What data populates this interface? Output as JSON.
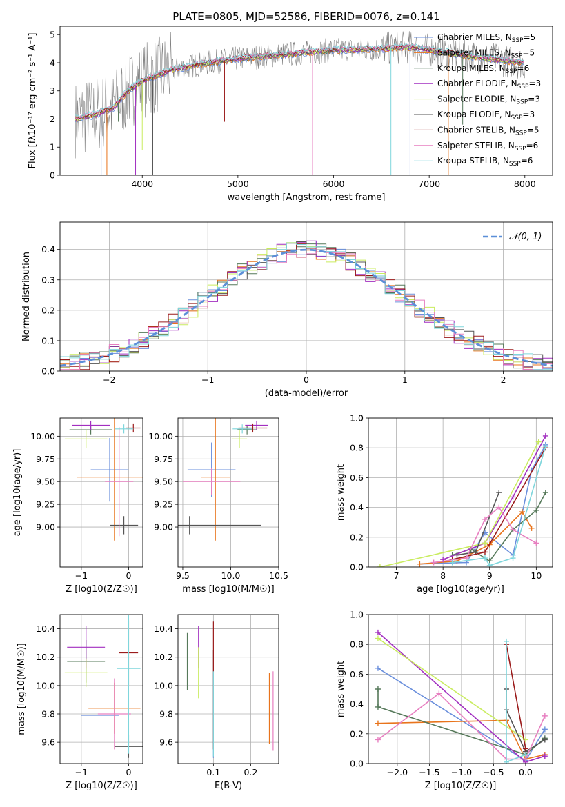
{
  "figure": {
    "title": "PLATE=0805, MJD=52586, FIBERID=0076, z=0.141"
  },
  "colors": {
    "c1": "#6a8fdc",
    "c2": "#e8741c",
    "c3": "#56795a",
    "c4": "#a22fc0",
    "c5": "#c9ec5e",
    "c6": "#555555",
    "c7": "#9b1c1c",
    "c8": "#e77fc0",
    "c9": "#7fd6dc",
    "obs": "#808080",
    "gauss": "#5b8fd8"
  },
  "chart_data": [
    {
      "id": "spectrum",
      "type": "line",
      "title": "PLATE=0805, MJD=52586, FIBERID=0076, z=0.141",
      "xlabel": "wavelength [Angstrom, rest frame]",
      "ylabel": "Flux [fλ10⁻¹⁷ erg cm⁻² s⁻¹ A⁻¹]",
      "xlim": [
        3140,
        8290
      ],
      "ylim": [
        0,
        5.3
      ],
      "xticks": [
        4000,
        5000,
        6000,
        7000,
        8000
      ],
      "yticks": [
        0,
        1,
        2,
        3,
        4,
        5
      ],
      "legend_position": "upper-right",
      "legend": [
        {
          "label": "Chabrier MILES, N",
          "sub": "SSP",
          "suffix": "=5",
          "color": "#6a8fdc"
        },
        {
          "label": "Salpeter MILES, N",
          "sub": "SSP",
          "suffix": "=5",
          "color": "#e8741c"
        },
        {
          "label": "Kroupa MILES, N",
          "sub": "SSP",
          "suffix": "=6",
          "color": "#56795a"
        },
        {
          "label": "Chabrier ELODIE, N",
          "sub": "SSP",
          "suffix": "=3",
          "color": "#a22fc0"
        },
        {
          "label": "Salpeter ELODIE, N",
          "sub": "SSP",
          "suffix": "=3",
          "color": "#c9ec5e"
        },
        {
          "label": "Kroupa ELODIE, N",
          "sub": "SSP",
          "suffix": "=3",
          "color": "#555555"
        },
        {
          "label": "Chabrier STELIB, N",
          "sub": "SSP",
          "suffix": "=5",
          "color": "#9b1c1c"
        },
        {
          "label": "Salpeter STELIB, N",
          "sub": "SSP",
          "suffix": "=6",
          "color": "#e77fc0"
        },
        {
          "label": "Kroupa STELIB, N",
          "sub": "SSP",
          "suffix": "=6",
          "color": "#7fd6dc"
        }
      ],
      "continuum": {
        "x": [
          3300,
          3500,
          3700,
          3850,
          4000,
          4300,
          4600,
          5000,
          5500,
          6000,
          6500,
          6800,
          7000,
          7300,
          7600,
          8000
        ],
        "y": [
          2.0,
          2.15,
          2.4,
          3.0,
          3.35,
          3.75,
          3.95,
          4.15,
          4.3,
          4.45,
          4.5,
          4.55,
          4.45,
          4.3,
          4.15,
          4.0
        ]
      },
      "absorption_dips": [
        {
          "x": 3570,
          "y": 0
        },
        {
          "x": 3630,
          "y": 0
        },
        {
          "x": 3750,
          "y": 1.9
        },
        {
          "x": 3930,
          "y": 0
        },
        {
          "x": 4000,
          "y": 0.9
        },
        {
          "x": 4110,
          "y": 0
        },
        {
          "x": 4860,
          "y": 1.9
        },
        {
          "x": 5780,
          "y": 0
        },
        {
          "x": 6600,
          "y": 0
        },
        {
          "x": 6800,
          "y": 0
        },
        {
          "x": 7200,
          "y": 0
        },
        {
          "x": 7350,
          "y": 1.8
        }
      ]
    },
    {
      "id": "residuals",
      "type": "line",
      "xlabel": "(data-model)/error",
      "ylabel": "Normed distribution",
      "xlim": [
        -2.5,
        2.5
      ],
      "ylim": [
        0,
        0.49
      ],
      "xticks": [
        -2,
        -1,
        0,
        1,
        2
      ],
      "yticks": [
        0.0,
        0.1,
        0.2,
        0.3,
        0.4
      ],
      "legend": [
        {
          "label": "𝒩(0, 1)",
          "color": "#5b8fd8",
          "style": "dashed"
        }
      ],
      "series": [
        {
          "name": "𝒩(0, 1)",
          "function": "standard-normal-pdf"
        }
      ],
      "histogram_bin_width": 0.1
    },
    {
      "id": "age-vs-Z",
      "type": "scatter",
      "xlabel": "Z [log10(Z/Z☉)]",
      "ylabel": "age  [log10(age/yr)]",
      "xlim": [
        -1.45,
        0.3
      ],
      "ylim": [
        8.56,
        10.2
      ],
      "xticks": [
        -1,
        0
      ],
      "yticks": [
        9.0,
        9.25,
        9.5,
        9.75,
        10.0
      ],
      "points": [
        {
          "x": -0.4,
          "y": 9.63,
          "xerr": 0.4,
          "yerr": 0.35,
          "color": "#6a8fdc"
        },
        {
          "x": -0.3,
          "y": 9.55,
          "xerr": 0.8,
          "yerr": 0.7,
          "color": "#e8741c"
        },
        {
          "x": -0.8,
          "y": 10.07,
          "xerr": 0.45,
          "yerr": 0.05,
          "color": "#56795a"
        },
        {
          "x": -0.8,
          "y": 10.12,
          "xerr": 0.4,
          "yerr": 0.05,
          "color": "#a22fc0"
        },
        {
          "x": -0.9,
          "y": 9.97,
          "xerr": 0.45,
          "yerr": 0.1,
          "color": "#c9ec5e"
        },
        {
          "x": -0.1,
          "y": 9.02,
          "xerr": 0.3,
          "yerr": 0.1,
          "color": "#555555"
        },
        {
          "x": 0.1,
          "y": 10.09,
          "xerr": 0.15,
          "yerr": 0.05,
          "color": "#9b1c1c"
        },
        {
          "x": -0.2,
          "y": 9.5,
          "xerr": 0.3,
          "yerr": 0.6,
          "color": "#e77fc0"
        },
        {
          "x": -0.1,
          "y": 10.08,
          "xerr": 0.2,
          "yerr": 0.05,
          "color": "#7fd6dc"
        }
      ]
    },
    {
      "id": "age-vs-mass",
      "type": "scatter",
      "xlabel": "mass [log10(M/M☉)]",
      "xlim": [
        9.45,
        10.5
      ],
      "ylim": [
        8.56,
        10.2
      ],
      "xticks": [
        9.5,
        10.0,
        10.5
      ],
      "yticks": [
        9.0,
        9.25,
        9.5,
        9.75,
        10.0
      ],
      "points": [
        {
          "x": 9.8,
          "y": 9.63,
          "xerr": 0.25,
          "yerr": 0.3,
          "color": "#6a8fdc"
        },
        {
          "x": 9.84,
          "y": 9.55,
          "xerr": 0.15,
          "yerr": 0.7,
          "color": "#e8741c"
        },
        {
          "x": 10.17,
          "y": 10.07,
          "xerr": 0.1,
          "yerr": 0.05,
          "color": "#56795a"
        },
        {
          "x": 10.27,
          "y": 10.12,
          "xerr": 0.12,
          "yerr": 0.05,
          "color": "#a22fc0"
        },
        {
          "x": 10.09,
          "y": 9.97,
          "xerr": 0.08,
          "yerr": 0.1,
          "color": "#c9ec5e"
        },
        {
          "x": 9.57,
          "y": 9.02,
          "xerr": 0.75,
          "yerr": 0.1,
          "color": "#555555"
        },
        {
          "x": 10.23,
          "y": 10.09,
          "xerr": 0.15,
          "yerr": 0.05,
          "color": "#9b1c1c"
        },
        {
          "x": 9.8,
          "y": 9.5,
          "xerr": 0.3,
          "yerr": 0.15,
          "color": "#e77fc0"
        },
        {
          "x": 10.12,
          "y": 10.08,
          "xerr": 0.1,
          "yerr": 0.05,
          "color": "#7fd6dc"
        }
      ]
    },
    {
      "id": "weight-vs-age",
      "type": "line",
      "xlabel": "age  [log10(age/yr)]",
      "ylabel": "mass weight",
      "xlim": [
        6.4,
        10.35
      ],
      "ylim": [
        0,
        1.0
      ],
      "xticks": [
        7,
        8,
        9,
        10
      ],
      "yticks": [
        0.0,
        0.2,
        0.4,
        0.6,
        0.8,
        1.0
      ],
      "series": [
        {
          "color": "#6a8fdc",
          "x": [
            7.5,
            8.5,
            8.9,
            9.5,
            9.9,
            10.2
          ],
          "y": [
            0.02,
            0.03,
            0.23,
            0.08,
            0.65,
            0.82
          ]
        },
        {
          "color": "#e8741c",
          "x": [
            7.5,
            8.3,
            9.0,
            9.7,
            9.9
          ],
          "y": [
            0.02,
            0.04,
            0.15,
            0.37,
            0.26
          ]
        },
        {
          "color": "#56795a",
          "x": [
            8.2,
            8.6,
            9.0,
            9.5,
            10.0,
            10.2
          ],
          "y": [
            0.08,
            0.12,
            0.04,
            0.25,
            0.38,
            0.5
          ]
        },
        {
          "color": "#a22fc0",
          "x": [
            8.0,
            8.9,
            9.5,
            10.2
          ],
          "y": [
            0.05,
            0.16,
            0.47,
            0.88
          ]
        },
        {
          "color": "#c9ec5e",
          "x": [
            6.65,
            8.9,
            10.05
          ],
          "y": [
            0.0,
            0.16,
            0.84
          ]
        },
        {
          "color": "#555555",
          "x": [
            8.3,
            8.7,
            9.2
          ],
          "y": [
            0.08,
            0.1,
            0.5
          ]
        },
        {
          "color": "#9b1c1c",
          "x": [
            8.2,
            8.9,
            10.2
          ],
          "y": [
            0.05,
            0.1,
            0.8
          ]
        },
        {
          "color": "#e77fc0",
          "x": [
            7.8,
            8.5,
            8.9,
            9.2,
            9.5,
            10.0
          ],
          "y": [
            0.03,
            0.06,
            0.32,
            0.4,
            0.25,
            0.16
          ]
        },
        {
          "color": "#7fd6dc",
          "x": [
            8.2,
            8.9,
            9.0,
            9.5,
            10.2
          ],
          "y": [
            0.03,
            0.06,
            0.01,
            0.06,
            0.81
          ]
        }
      ]
    },
    {
      "id": "mass-vs-Z",
      "type": "scatter",
      "xlabel": "Z [log10(Z/Z☉)]",
      "ylabel": "mass [log10(M/M☉)]",
      "xlim": [
        -1.45,
        0.3
      ],
      "ylim": [
        9.45,
        10.5
      ],
      "xticks": [
        -1,
        0
      ],
      "yticks": [
        9.6,
        9.8,
        10.0,
        10.2,
        10.4
      ],
      "points": [
        {
          "x": -0.6,
          "y": 9.79,
          "xerr": 0.4,
          "yerr": 0.0,
          "color": "#6a8fdc"
        },
        {
          "x": -0.3,
          "y": 9.84,
          "xerr": 0.55,
          "yerr": 0.18,
          "color": "#e8741c"
        },
        {
          "x": -0.9,
          "y": 10.17,
          "xerr": 0.4,
          "yerr": 0.15,
          "color": "#56795a"
        },
        {
          "x": -0.9,
          "y": 10.27,
          "xerr": 0.4,
          "yerr": 0.15,
          "color": "#a22fc0"
        },
        {
          "x": -0.9,
          "y": 10.09,
          "xerr": 0.45,
          "yerr": 0.1,
          "color": "#c9ec5e"
        },
        {
          "x": 0.0,
          "y": 9.57,
          "xerr": 0.3,
          "yerr": 0.08,
          "color": "#555555"
        },
        {
          "x": 0.0,
          "y": 10.23,
          "xerr": 0.2,
          "yerr": 0.23,
          "color": "#9b1c1c"
        },
        {
          "x": -0.3,
          "y": 9.8,
          "xerr": 0.35,
          "yerr": 0.25,
          "color": "#e77fc0"
        },
        {
          "x": 0.0,
          "y": 10.12,
          "xerr": 0.25,
          "yerr": 0.6,
          "color": "#7fd6dc"
        }
      ]
    },
    {
      "id": "mass-vs-EBV",
      "type": "scatter",
      "xlabel": "E(B-V)",
      "xlim": [
        0.005,
        0.275
      ],
      "ylim": [
        9.45,
        10.5
      ],
      "xticks": [
        0.1,
        0.2
      ],
      "yticks": [
        9.6,
        9.8,
        10.0,
        10.2,
        10.4
      ],
      "points": [
        {
          "x": 0.1,
          "y": 9.79,
          "xerr": 0,
          "yerr": 0.3,
          "color": "#6a8fdc"
        },
        {
          "x": 0.25,
          "y": 9.84,
          "xerr": 0,
          "yerr": 0.25,
          "color": "#e8741c"
        },
        {
          "x": 0.03,
          "y": 10.17,
          "xerr": 0,
          "yerr": 0.2,
          "color": "#56795a"
        },
        {
          "x": 0.06,
          "y": 10.27,
          "xerr": 0,
          "yerr": 0.15,
          "color": "#a22fc0"
        },
        {
          "x": 0.06,
          "y": 10.09,
          "xerr": 0,
          "yerr": 0.18,
          "color": "#c9ec5e"
        },
        {
          "x": 0.1,
          "y": 9.9,
          "xerr": 0,
          "yerr": 0.35,
          "color": "#555555"
        },
        {
          "x": 0.1,
          "y": 10.0,
          "xerr": 0,
          "yerr": 0.45,
          "color": "#9b1c1c"
        },
        {
          "x": 0.26,
          "y": 9.82,
          "xerr": 0,
          "yerr": 0.28,
          "color": "#e77fc0"
        },
        {
          "x": 0.1,
          "y": 9.8,
          "xerr": 0,
          "yerr": 0.3,
          "color": "#7fd6dc"
        }
      ]
    },
    {
      "id": "weight-vs-Z",
      "type": "line",
      "xlabel": "Z [log10(Z/Z☉)]",
      "ylabel": "mass weight",
      "xlim": [
        -2.45,
        0.42
      ],
      "ylim": [
        0,
        1.0
      ],
      "xticks": [
        -2.0,
        -1.5,
        -1.0,
        -0.5,
        0.0
      ],
      "yticks": [
        0.0,
        0.2,
        0.4,
        0.6,
        0.8,
        1.0
      ],
      "series": [
        {
          "color": "#6a8fdc",
          "x": [
            -2.3,
            0.0,
            0.3
          ],
          "y": [
            0.64,
            0.02,
            0.23
          ]
        },
        {
          "color": "#e8741c",
          "x": [
            -2.3,
            -0.3,
            0.0,
            0.3
          ],
          "y": [
            0.27,
            0.29,
            0.03,
            0.06
          ]
        },
        {
          "color": "#56795a",
          "x": [
            -2.3,
            -2.3,
            0.0,
            0.3
          ],
          "y": [
            0.5,
            0.38,
            0.06,
            0.17
          ]
        },
        {
          "color": "#a22fc0",
          "x": [
            -2.3,
            0.0,
            0.3
          ],
          "y": [
            0.88,
            0.01,
            0.05
          ]
        },
        {
          "color": "#c9ec5e",
          "x": [
            -2.3,
            0.0
          ],
          "y": [
            0.84,
            0.16
          ]
        },
        {
          "color": "#555555",
          "x": [
            -0.3,
            -0.3,
            0.0,
            0.3
          ],
          "y": [
            0.5,
            0.36,
            0.08,
            0.16
          ]
        },
        {
          "color": "#9b1c1c",
          "x": [
            -0.3,
            0.0
          ],
          "y": [
            0.8,
            0.1
          ]
        },
        {
          "color": "#e77fc0",
          "x": [
            -2.3,
            -1.35,
            -0.3,
            0.0,
            0.3
          ],
          "y": [
            0.16,
            0.47,
            0.03,
            0.03,
            0.32
          ]
        },
        {
          "color": "#7fd6dc",
          "x": [
            -0.3,
            -0.3,
            0.0
          ],
          "y": [
            0.82,
            0.01,
            0.06
          ]
        }
      ]
    }
  ]
}
